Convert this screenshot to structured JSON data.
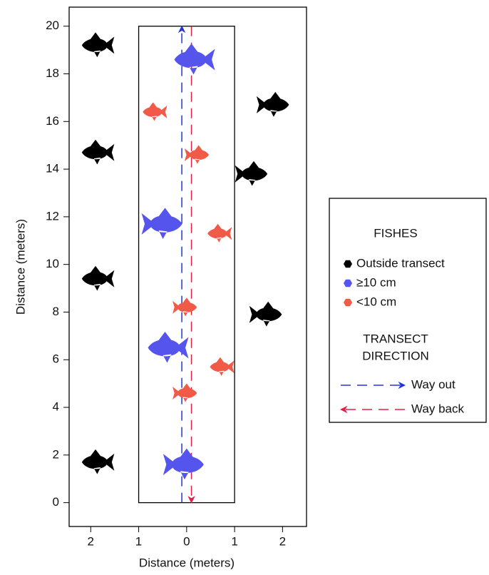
{
  "chart_data": {
    "type": "scatter",
    "x_label": "Distance (meters)",
    "y_label": "Distance (meters)",
    "xlim": [
      -2.45,
      2.5
    ],
    "ylim": [
      -1,
      20.8
    ],
    "xticks": [
      {
        "value": -2,
        "label": "2"
      },
      {
        "value": -1,
        "label": "1"
      },
      0,
      {
        "value": 1,
        "label": "1"
      },
      2
    ],
    "yticks": [
      0,
      2,
      4,
      6,
      8,
      10,
      12,
      14,
      16,
      18,
      20
    ],
    "transect_x": [
      -1,
      1
    ],
    "transect_y": [
      0,
      20
    ],
    "way_out_x": -0.1,
    "way_back_x": 0.1,
    "legend_title": "FISHES",
    "series": [
      {
        "name": "Outside transect",
        "color": "#000000",
        "x": [
          -1.9,
          1.85,
          -1.9,
          1.4,
          -1.9,
          1.7,
          -1.9
        ],
        "values": [
          19.2,
          16.7,
          14.7,
          13.8,
          9.4,
          7.9,
          1.7
        ]
      },
      {
        "name": "≥10 cm",
        "color": "#5555ee",
        "x": [
          0.1,
          -0.45,
          -0.45,
          0
        ],
        "values": [
          18.6,
          11.7,
          6.5,
          1.6
        ]
      },
      {
        "name": "<10 cm",
        "color": "#f25a48",
        "x": [
          -0.7,
          0.25,
          0.65,
          0,
          0.7,
          0
        ],
        "values": [
          16.4,
          14.6,
          11.3,
          8.2,
          5.7,
          4.6
        ]
      }
    ],
    "direction_title": [
      "TRANSECT",
      "DIRECTION"
    ],
    "way_out_label": "Way out",
    "way_back_label": "Way back"
  }
}
